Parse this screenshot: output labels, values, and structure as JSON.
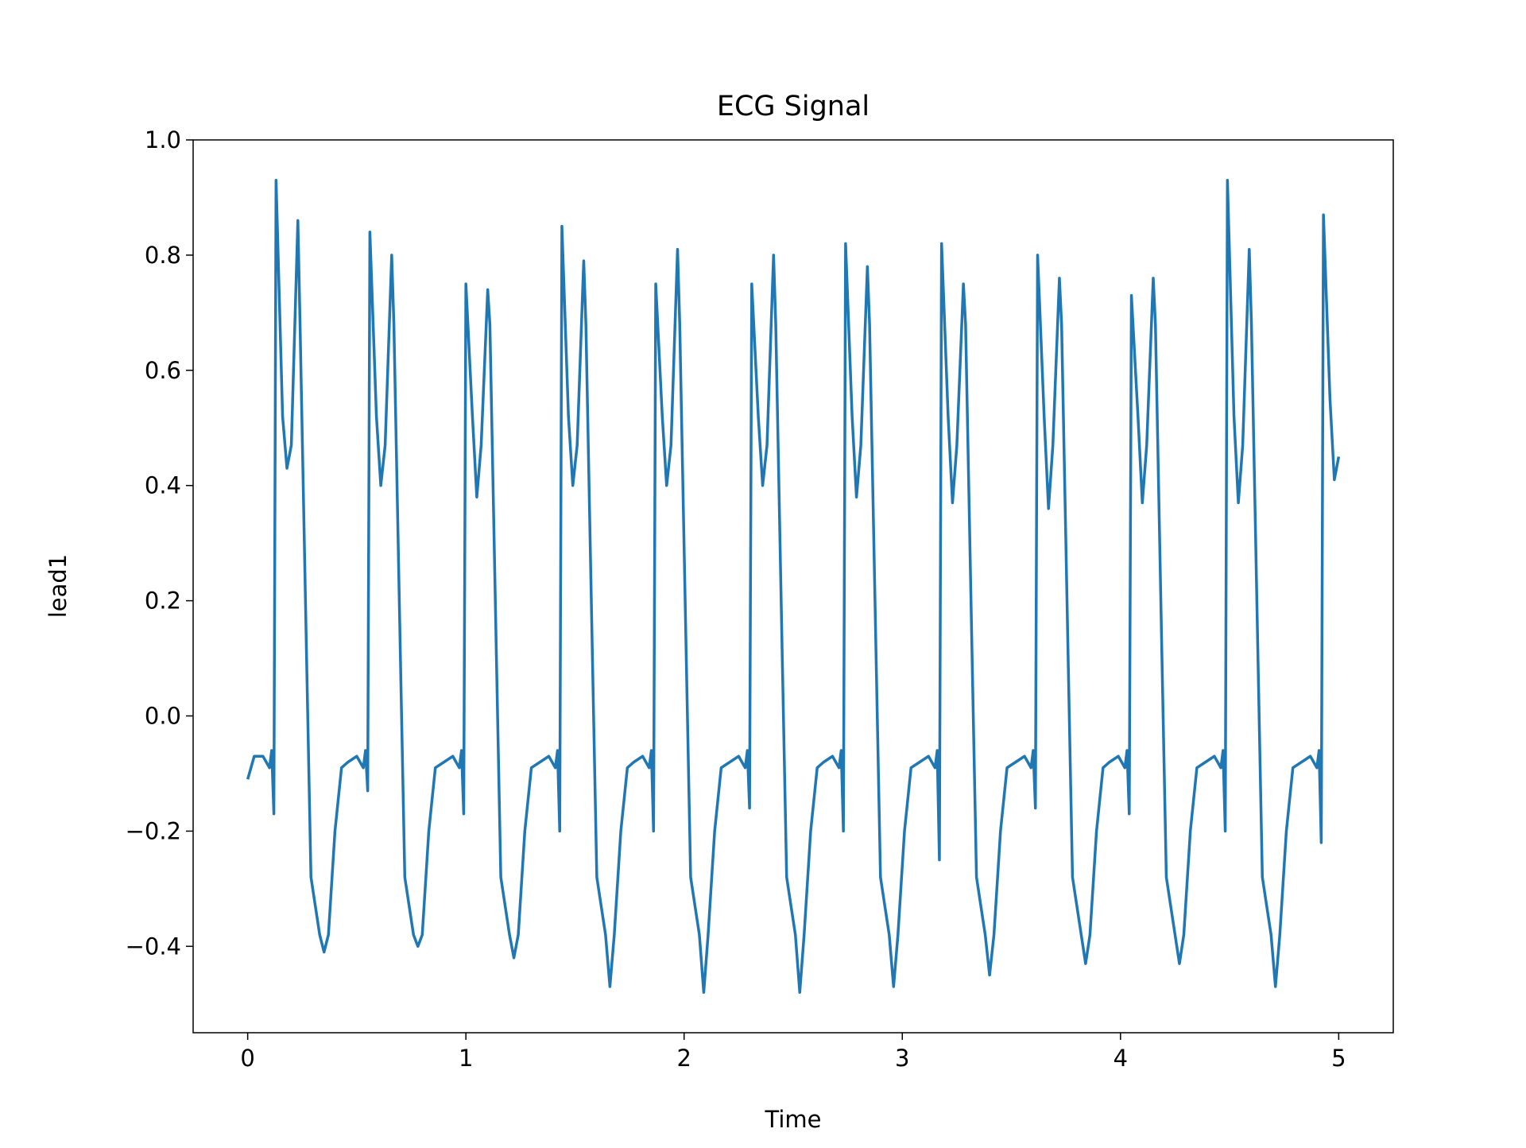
{
  "chart_data": {
    "type": "line",
    "title": "ECG Signal",
    "x_label": "Time",
    "y_label": "lead1",
    "color": "#1f77b4",
    "x": [
      0,
      0.03,
      0.07,
      0.1,
      0.11,
      0.12,
      0.13,
      0.16,
      0.18,
      0.2,
      0.23,
      0.24,
      0.27,
      0.29,
      0.31,
      0.33,
      0.35,
      0.37,
      0.4,
      0.43,
      0.46,
      0.5,
      0.53,
      0.54,
      0.55,
      0.56,
      0.59,
      0.61,
      0.63,
      0.66,
      0.67,
      0.7,
      0.72,
      0.74,
      0.76,
      0.78,
      0.8,
      0.83,
      0.86,
      0.9,
      0.94,
      0.97,
      0.98,
      0.99,
      1.0,
      1.03,
      1.05,
      1.07,
      1.1,
      1.11,
      1.14,
      1.16,
      1.18,
      1.2,
      1.22,
      1.24,
      1.27,
      1.3,
      1.34,
      1.38,
      1.41,
      1.42,
      1.43,
      1.44,
      1.47,
      1.49,
      1.51,
      1.54,
      1.55,
      1.58,
      1.6,
      1.62,
      1.64,
      1.66,
      1.68,
      1.71,
      1.74,
      1.77,
      1.81,
      1.84,
      1.85,
      1.86,
      1.87,
      1.9,
      1.92,
      1.94,
      1.97,
      1.98,
      2.01,
      2.03,
      2.05,
      2.07,
      2.09,
      2.11,
      2.14,
      2.17,
      2.21,
      2.25,
      2.28,
      2.29,
      2.3,
      2.31,
      2.34,
      2.36,
      2.38,
      2.41,
      2.42,
      2.45,
      2.47,
      2.49,
      2.51,
      2.53,
      2.55,
      2.58,
      2.61,
      2.64,
      2.68,
      2.71,
      2.72,
      2.73,
      2.74,
      2.77,
      2.79,
      2.81,
      2.84,
      2.85,
      2.88,
      2.9,
      2.92,
      2.94,
      2.96,
      2.98,
      3.01,
      3.04,
      3.08,
      3.12,
      3.15,
      3.16,
      3.17,
      3.18,
      3.21,
      3.23,
      3.25,
      3.28,
      3.29,
      3.32,
      3.34,
      3.36,
      3.38,
      3.4,
      3.42,
      3.45,
      3.48,
      3.52,
      3.56,
      3.59,
      3.6,
      3.61,
      3.62,
      3.65,
      3.67,
      3.69,
      3.72,
      3.73,
      3.76,
      3.78,
      3.8,
      3.82,
      3.84,
      3.86,
      3.89,
      3.92,
      3.95,
      3.99,
      4.02,
      4.03,
      4.04,
      4.05,
      4.08,
      4.1,
      4.12,
      4.15,
      4.16,
      4.19,
      4.21,
      4.23,
      4.25,
      4.27,
      4.29,
      4.32,
      4.35,
      4.39,
      4.43,
      4.46,
      4.47,
      4.48,
      4.49,
      4.52,
      4.54,
      4.56,
      4.59,
      4.6,
      4.63,
      4.65,
      4.67,
      4.69,
      4.71,
      4.73,
      4.76,
      4.79,
      4.83,
      4.87,
      4.9,
      4.91,
      4.92,
      4.93,
      4.96,
      4.98,
      5.0
    ],
    "values": [
      -0.11,
      -0.07,
      -0.07,
      -0.09,
      -0.06,
      -0.17,
      0.93,
      0.52,
      0.43,
      0.47,
      0.86,
      0.68,
      0.1,
      -0.28,
      -0.33,
      -0.38,
      -0.41,
      -0.38,
      -0.2,
      -0.09,
      -0.08,
      -0.07,
      -0.09,
      -0.06,
      -0.13,
      0.84,
      0.52,
      0.4,
      0.47,
      0.8,
      0.68,
      0.1,
      -0.28,
      -0.33,
      -0.38,
      -0.4,
      -0.38,
      -0.2,
      -0.09,
      -0.08,
      -0.07,
      -0.09,
      -0.06,
      -0.17,
      0.75,
      0.52,
      0.38,
      0.47,
      0.74,
      0.68,
      0.1,
      -0.28,
      -0.33,
      -0.38,
      -0.42,
      -0.38,
      -0.2,
      -0.09,
      -0.08,
      -0.07,
      -0.09,
      -0.06,
      -0.2,
      0.85,
      0.52,
      0.4,
      0.47,
      0.79,
      0.68,
      0.1,
      -0.28,
      -0.33,
      -0.38,
      -0.47,
      -0.38,
      -0.2,
      -0.09,
      -0.08,
      -0.07,
      -0.09,
      -0.06,
      -0.2,
      0.75,
      0.52,
      0.4,
      0.47,
      0.81,
      0.68,
      0.1,
      -0.28,
      -0.33,
      -0.38,
      -0.48,
      -0.38,
      -0.2,
      -0.09,
      -0.08,
      -0.07,
      -0.09,
      -0.06,
      -0.16,
      0.75,
      0.52,
      0.4,
      0.47,
      0.8,
      0.68,
      0.1,
      -0.28,
      -0.33,
      -0.38,
      -0.48,
      -0.38,
      -0.2,
      -0.09,
      -0.08,
      -0.07,
      -0.09,
      -0.06,
      -0.2,
      0.82,
      0.52,
      0.38,
      0.47,
      0.78,
      0.68,
      0.1,
      -0.28,
      -0.33,
      -0.38,
      -0.47,
      -0.38,
      -0.2,
      -0.09,
      -0.08,
      -0.07,
      -0.09,
      -0.06,
      -0.25,
      0.82,
      0.52,
      0.37,
      0.47,
      0.75,
      0.68,
      0.1,
      -0.28,
      -0.33,
      -0.38,
      -0.45,
      -0.38,
      -0.2,
      -0.09,
      -0.08,
      -0.07,
      -0.09,
      -0.06,
      -0.16,
      0.8,
      0.52,
      0.36,
      0.47,
      0.76,
      0.68,
      0.1,
      -0.28,
      -0.33,
      -0.38,
      -0.43,
      -0.38,
      -0.2,
      -0.09,
      -0.08,
      -0.07,
      -0.09,
      -0.06,
      -0.17,
      0.73,
      0.52,
      0.37,
      0.47,
      0.76,
      0.68,
      0.1,
      -0.28,
      -0.33,
      -0.38,
      -0.43,
      -0.38,
      -0.2,
      -0.09,
      -0.08,
      -0.07,
      -0.09,
      -0.06,
      -0.2,
      0.93,
      0.52,
      0.37,
      0.47,
      0.81,
      0.68,
      0.1,
      -0.28,
      -0.33,
      -0.38,
      -0.47,
      -0.38,
      -0.2,
      -0.09,
      -0.08,
      -0.07,
      -0.09,
      -0.06,
      -0.22,
      0.87,
      0.55,
      0.41,
      0.45
    ],
    "xlim": [
      -0.25,
      5.25
    ],
    "ylim": [
      -0.55,
      1.0
    ],
    "xticks": [
      0,
      1,
      2,
      3,
      4,
      5
    ],
    "yticks": [
      {
        "value": -0.4,
        "label": "−0.4"
      },
      {
        "value": -0.2,
        "label": "−0.2"
      },
      {
        "value": 0,
        "label": "0.0"
      },
      0.2,
      0.4,
      0.6,
      0.8,
      {
        "value": 1,
        "label": "1.0"
      }
    ]
  }
}
